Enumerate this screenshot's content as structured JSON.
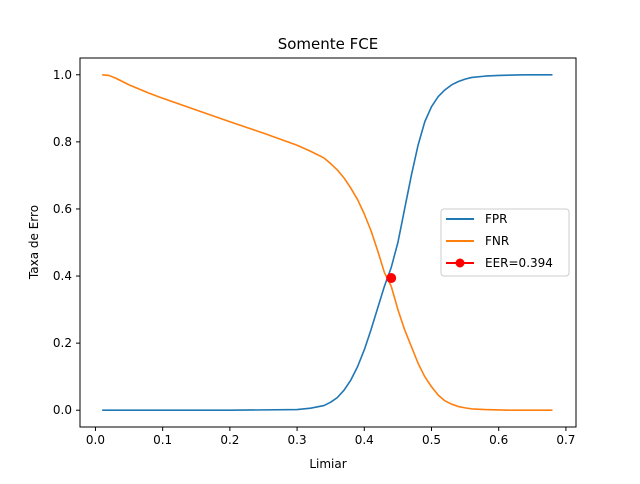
{
  "chart_data": {
    "type": "line",
    "title": "Somente FCE",
    "xlabel": "Limiar",
    "ylabel": "Taxa de Erro",
    "xlim": [
      -0.023,
      0.715
    ],
    "ylim": [
      -0.05,
      1.05
    ],
    "x_ticks": [
      "0.0",
      "0.1",
      "0.2",
      "0.3",
      "0.4",
      "0.5",
      "0.6",
      "0.7"
    ],
    "y_ticks": [
      "0.0",
      "0.2",
      "0.4",
      "0.6",
      "0.8",
      "1.0"
    ],
    "grid": false,
    "legend_placement": "center-right",
    "series": [
      {
        "name": "FPR",
        "color": "#1f77b4",
        "x": [
          0.01,
          0.1,
          0.2,
          0.3,
          0.32,
          0.34,
          0.35,
          0.36,
          0.37,
          0.38,
          0.39,
          0.4,
          0.41,
          0.42,
          0.43,
          0.44,
          0.45,
          0.46,
          0.47,
          0.48,
          0.49,
          0.5,
          0.51,
          0.52,
          0.53,
          0.54,
          0.55,
          0.56,
          0.58,
          0.6,
          0.62,
          0.64,
          0.66,
          0.68
        ],
        "y": [
          0.0,
          0.0,
          0.0,
          0.002,
          0.006,
          0.014,
          0.024,
          0.038,
          0.06,
          0.09,
          0.13,
          0.18,
          0.24,
          0.305,
          0.37,
          0.425,
          0.5,
          0.6,
          0.7,
          0.79,
          0.86,
          0.905,
          0.935,
          0.955,
          0.97,
          0.98,
          0.987,
          0.992,
          0.996,
          0.998,
          0.999,
          1.0,
          1.0,
          1.0
        ]
      },
      {
        "name": "FNR",
        "color": "#ff7f0e",
        "x": [
          0.01,
          0.02,
          0.03,
          0.05,
          0.08,
          0.1,
          0.15,
          0.2,
          0.25,
          0.3,
          0.32,
          0.34,
          0.35,
          0.36,
          0.37,
          0.38,
          0.39,
          0.4,
          0.41,
          0.42,
          0.43,
          0.44,
          0.45,
          0.46,
          0.47,
          0.48,
          0.49,
          0.5,
          0.51,
          0.52,
          0.53,
          0.54,
          0.55,
          0.56,
          0.58,
          0.6,
          0.62,
          0.64,
          0.66,
          0.68
        ],
        "y": [
          1.0,
          0.998,
          0.99,
          0.97,
          0.945,
          0.93,
          0.895,
          0.86,
          0.826,
          0.79,
          0.772,
          0.752,
          0.735,
          0.716,
          0.692,
          0.662,
          0.628,
          0.585,
          0.535,
          0.475,
          0.41,
          0.37,
          0.3,
          0.24,
          0.19,
          0.14,
          0.1,
          0.07,
          0.045,
          0.028,
          0.018,
          0.011,
          0.007,
          0.004,
          0.002,
          0.001,
          0.0,
          0.0,
          0.0,
          0.0
        ]
      },
      {
        "name": "EER=0.394",
        "color": "#ff0000",
        "marker": "circle",
        "x": [
          0.44
        ],
        "y": [
          0.394
        ]
      }
    ]
  }
}
